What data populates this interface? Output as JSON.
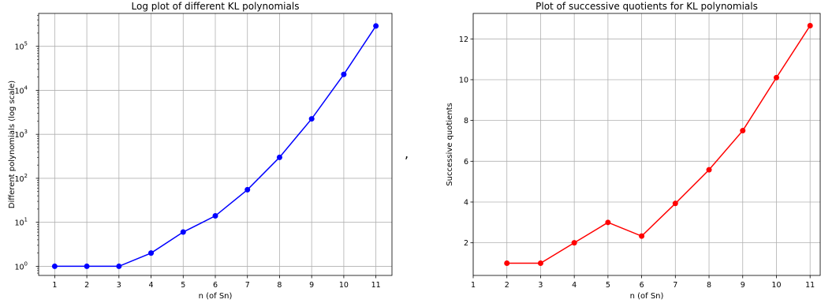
{
  "separator": ",",
  "chart_data": [
    {
      "type": "line",
      "title": "Log plot of different KL polynomials",
      "xlabel": "n (of Sn)",
      "ylabel": "Different polynomials (log scale)",
      "yscale": "log",
      "ylim": [
        0.62,
        560000
      ],
      "xlim": [
        0.5,
        11.5
      ],
      "xticks": [
        1,
        2,
        3,
        4,
        5,
        6,
        7,
        8,
        9,
        10,
        11
      ],
      "yticks": [
        {
          "value": 1,
          "base": "10",
          "exp": "0"
        },
        {
          "value": 10,
          "base": "10",
          "exp": "1"
        },
        {
          "value": 100,
          "base": "10",
          "exp": "2"
        },
        {
          "value": 1000,
          "base": "10",
          "exp": "3"
        },
        {
          "value": 10000,
          "base": "10",
          "exp": "4"
        },
        {
          "value": 100000,
          "base": "10",
          "exp": "5"
        }
      ],
      "grid": true,
      "color": "#0000ff",
      "series": [
        {
          "x": [
            1,
            2,
            3,
            4,
            5,
            6,
            7,
            8,
            9,
            10,
            11
          ],
          "values": [
            1,
            1,
            1,
            2,
            6,
            14,
            55,
            300,
            2250,
            23000,
            290000
          ]
        }
      ]
    },
    {
      "type": "line",
      "title": "Plot of successive quotients for KL polynomials",
      "xlabel": "n (of Sn)",
      "ylabel": "Successive quotients",
      "yscale": "linear",
      "xlim": [
        1,
        11.3
      ],
      "ylim": [
        0.4,
        13.25
      ],
      "xticks": [
        1,
        2,
        3,
        4,
        5,
        6,
        7,
        8,
        9,
        10,
        11
      ],
      "yticks": [
        2,
        4,
        6,
        8,
        10,
        12
      ],
      "grid": true,
      "color": "#ff0000",
      "series": [
        {
          "x": [
            2,
            3,
            4,
            5,
            6,
            7,
            8,
            9,
            10,
            11
          ],
          "values": [
            1,
            1,
            2,
            3,
            2.33,
            3.93,
            5.58,
            7.5,
            10.1,
            12.65
          ]
        }
      ]
    }
  ]
}
